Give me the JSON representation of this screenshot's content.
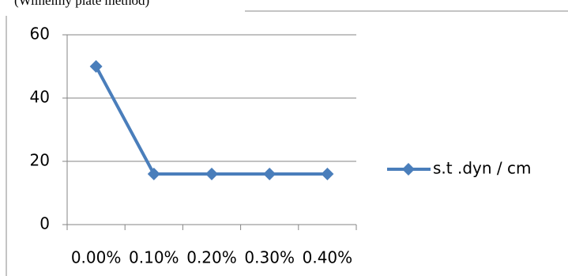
{
  "chart_data": {
    "type": "line",
    "title": "(Wilhelmy plate method)",
    "categories": [
      "0.00%",
      "0.10%",
      "0.20%",
      "0.30%",
      "0.40%"
    ],
    "series": [
      {
        "name": "s.t .dyn / cm",
        "color": "#4a7ebb",
        "values": [
          50,
          16,
          16,
          16,
          16
        ]
      }
    ],
    "ylim": [
      0,
      60
    ],
    "yticks": [
      0,
      20,
      40,
      60
    ],
    "grid": true,
    "legend": "right"
  }
}
